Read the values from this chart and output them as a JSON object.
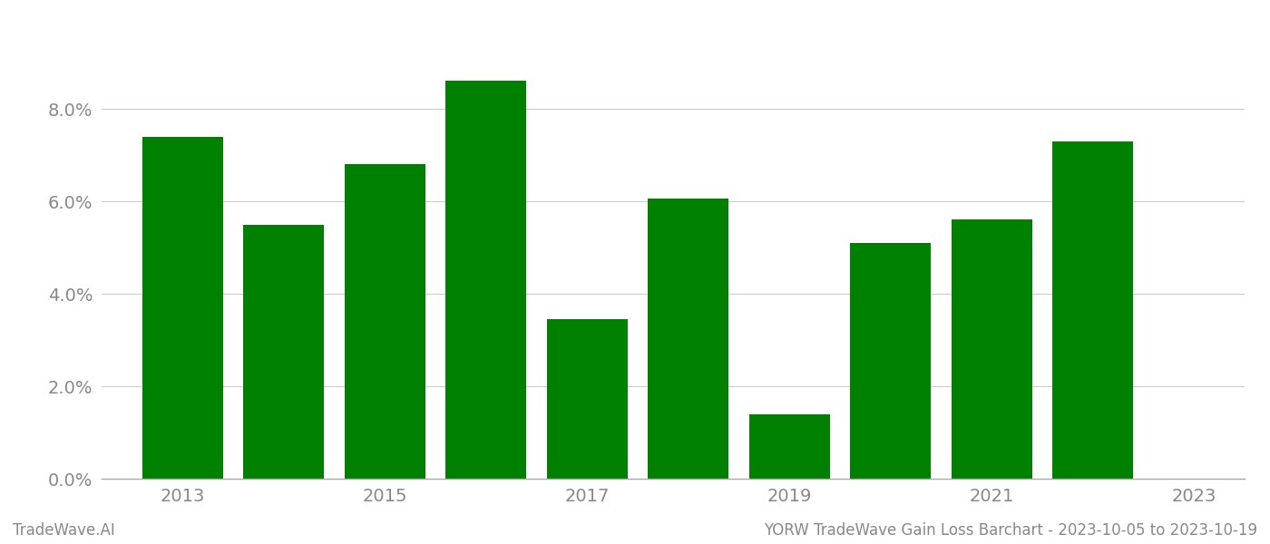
{
  "years": [
    2013,
    2014,
    2015,
    2016,
    2017,
    2018,
    2019,
    2020,
    2021,
    2022
  ],
  "values": [
    0.074,
    0.055,
    0.068,
    0.086,
    0.0345,
    0.0605,
    0.014,
    0.051,
    0.056,
    0.073
  ],
  "bar_color": "#008000",
  "ylim": [
    0,
    0.1
  ],
  "yticks": [
    0.0,
    0.02,
    0.04,
    0.06,
    0.08
  ],
  "footer_left": "TradeWave.AI",
  "footer_right": "YORW TradeWave Gain Loss Barchart - 2023-10-05 to 2023-10-19",
  "background_color": "#ffffff",
  "grid_color": "#cccccc",
  "bar_width": 0.8,
  "xlim_left": 2012.2,
  "xlim_right": 2023.5,
  "xtick_positions": [
    2013,
    2015,
    2017,
    2019,
    2021,
    2023
  ],
  "xtick_labels": [
    "2013",
    "2015",
    "2017",
    "2019",
    "2021",
    "2023"
  ],
  "tick_fontsize": 14,
  "footer_fontsize": 12
}
